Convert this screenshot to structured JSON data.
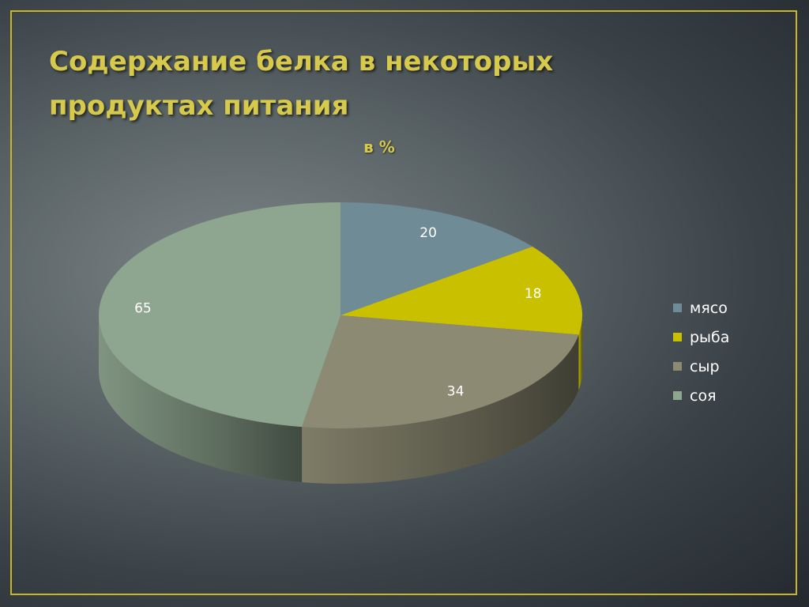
{
  "slide": {
    "title": "Содержание белка в некоторых продуктах питания"
  },
  "chart_data": {
    "type": "pie",
    "title": "в %",
    "categories": [
      "мясо",
      "рыба",
      "сыр",
      "соя"
    ],
    "values": [
      20,
      18,
      34,
      65
    ],
    "data_labels": [
      "20",
      "18",
      "34",
      "65"
    ],
    "colors": [
      "#6f8c96",
      "#c9c000",
      "#8c8a72",
      "#8ea58f"
    ],
    "legend": "right",
    "style": "3d"
  }
}
